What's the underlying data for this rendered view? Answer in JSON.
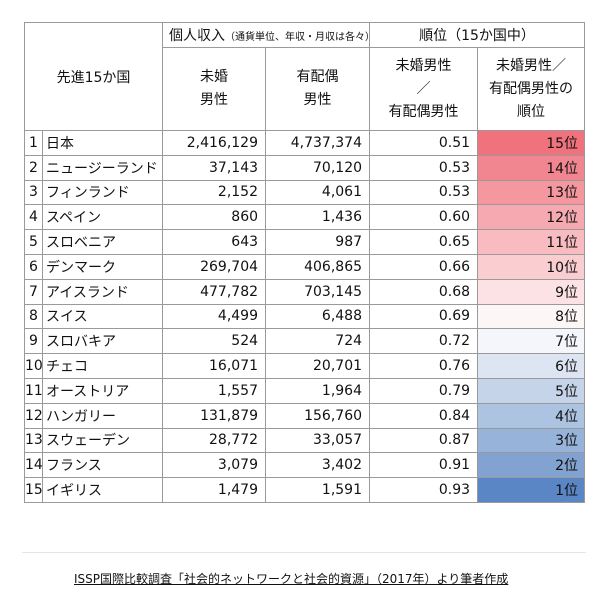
{
  "chart_data": {
    "type": "table",
    "header": {
      "country_col": "先進15か国",
      "income_group": "個人収入",
      "income_note": "（通貨単位、年収・月収は各々）",
      "rank_group": "順位（15か国中）",
      "unmarried_lines": [
        "未婚",
        "男性"
      ],
      "married_lines": [
        "有配偶",
        "男性"
      ],
      "ratio_lines": [
        "未婚男性",
        "／",
        "有配偶男性"
      ],
      "rankcol_lines": [
        "未婚男性／",
        "有配偶男性の",
        "順位"
      ]
    },
    "rows": [
      {
        "no": "1",
        "country": "日本",
        "unmarried": "2,416,129",
        "married": "4,737,374",
        "ratio": "0.51",
        "rank": "15位",
        "color": "#f0727d"
      },
      {
        "no": "2",
        "country": "ニュージーランド",
        "unmarried": "37,143",
        "married": "70,120",
        "ratio": "0.53",
        "rank": "14位",
        "color": "#f28690"
      },
      {
        "no": "3",
        "country": "フィンランド",
        "unmarried": "2,152",
        "married": "4,061",
        "ratio": "0.53",
        "rank": "13位",
        "color": "#f4979f"
      },
      {
        "no": "4",
        "country": "スペイン",
        "unmarried": "860",
        "married": "1,436",
        "ratio": "0.60",
        "rank": "12位",
        "color": "#f6a9b0"
      },
      {
        "no": "5",
        "country": "スロベニア",
        "unmarried": "643",
        "married": "987",
        "ratio": "0.65",
        "rank": "11位",
        "color": "#f8bbc0"
      },
      {
        "no": "6",
        "country": "デンマーク",
        "unmarried": "269,704",
        "married": "406,865",
        "ratio": "0.66",
        "rank": "10位",
        "color": "#facdd1"
      },
      {
        "no": "7",
        "country": "アイスランド",
        "unmarried": "477,782",
        "married": "703,145",
        "ratio": "0.68",
        "rank": "9位",
        "color": "#fce2e4"
      },
      {
        "no": "8",
        "country": "スイス",
        "unmarried": "4,499",
        "married": "6,488",
        "ratio": "0.69",
        "rank": "8位",
        "color": "#fdf6f7"
      },
      {
        "no": "9",
        "country": "スロバキア",
        "unmarried": "524",
        "married": "724",
        "ratio": "0.72",
        "rank": "7位",
        "color": "#f4f6fb"
      },
      {
        "no": "10",
        "country": "チェコ",
        "unmarried": "16,071",
        "married": "20,701",
        "ratio": "0.76",
        "rank": "6位",
        "color": "#dde5f2"
      },
      {
        "no": "11",
        "country": "オーストリア",
        "unmarried": "1,557",
        "married": "1,964",
        "ratio": "0.79",
        "rank": "5位",
        "color": "#c6d4ea"
      },
      {
        "no": "12",
        "country": "ハンガリー",
        "unmarried": "131,879",
        "married": "156,760",
        "ratio": "0.84",
        "rank": "4位",
        "color": "#adc3e2"
      },
      {
        "no": "13",
        "country": "スウェーデン",
        "unmarried": "28,772",
        "married": "33,057",
        "ratio": "0.87",
        "rank": "3位",
        "color": "#98b3da"
      },
      {
        "no": "14",
        "country": "フランス",
        "unmarried": "3,079",
        "married": "3,402",
        "ratio": "0.91",
        "rank": "2位",
        "color": "#82a2d1"
      },
      {
        "no": "15",
        "country": "イギリス",
        "unmarried": "1,479",
        "married": "1,591",
        "ratio": "0.93",
        "rank": "1位",
        "color": "#5b86c5"
      }
    ],
    "source": "ISSP国際比較調査「社会的ネットワークと社会的資源」（2017年）より筆者作成"
  }
}
